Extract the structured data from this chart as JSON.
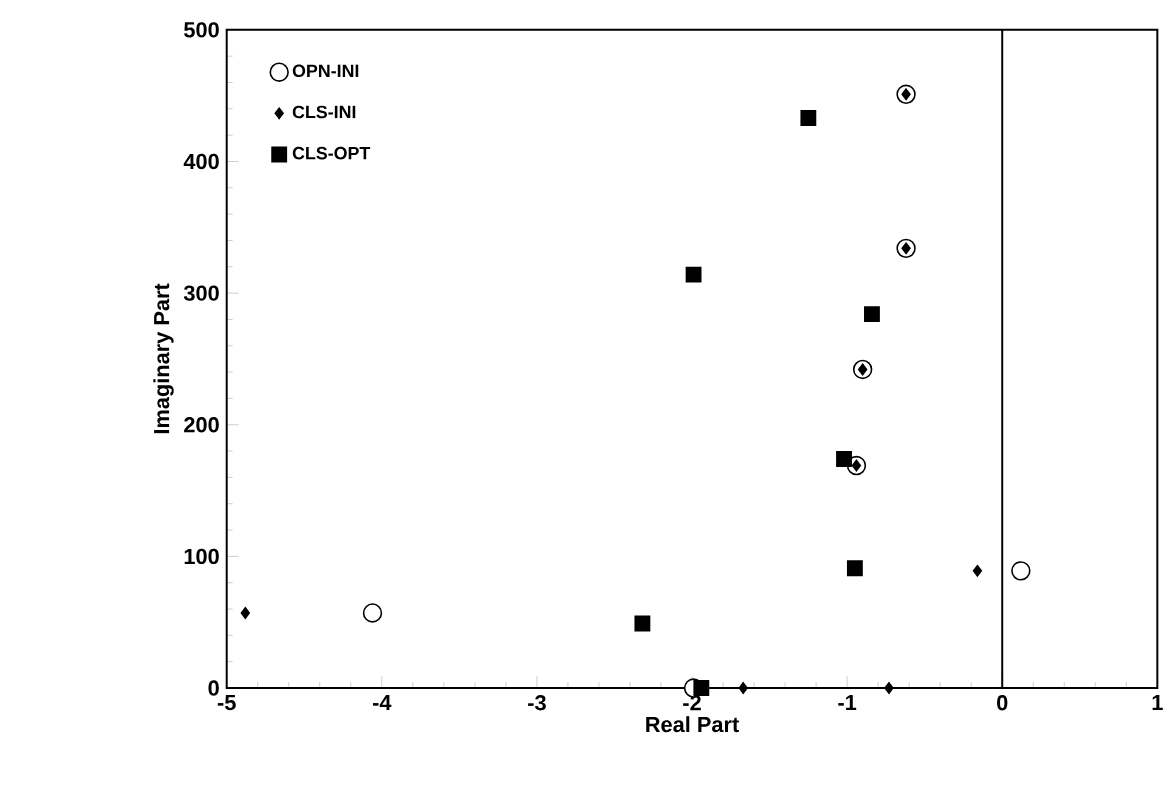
{
  "chart_data": {
    "type": "scatter",
    "xlabel": "Real Part",
    "ylabel": "Imaginary Part",
    "xlim": [
      -5,
      1
    ],
    "xticks": [
      -5,
      -4,
      -3,
      -2,
      -1,
      0,
      1
    ],
    "ylim": [
      0,
      500
    ],
    "yticks": [
      0,
      100,
      200,
      300,
      400,
      500
    ],
    "grid": false,
    "legend": "top left",
    "ref_lines": [
      {
        "axis": "x",
        "value": 0,
        "color": "#000000"
      }
    ],
    "series": [
      {
        "name": "OPN-INI",
        "color": "#000000",
        "marker": "circle",
        "x": [
          -0.62,
          -0.62,
          -0.9,
          -0.94,
          0.12,
          -4.06,
          -1.99
        ],
        "values": [
          451,
          334,
          242,
          169,
          89,
          57,
          0
        ]
      },
      {
        "name": "CLS-INI",
        "color": "#000000",
        "marker": "diamond",
        "x": [
          -0.62,
          -0.62,
          -0.9,
          -0.94,
          -4.88,
          -0.16,
          -1.67,
          -0.73
        ],
        "values": [
          451,
          334,
          242,
          169,
          57,
          89,
          0,
          0
        ]
      },
      {
        "name": "CLS-OPT",
        "color": "#000000",
        "marker": "square",
        "x": [
          -1.25,
          -1.99,
          -0.84,
          -1.02,
          -0.95,
          -2.32,
          -1.94
        ],
        "values": [
          433,
          314,
          284,
          174,
          91,
          49,
          0
        ]
      }
    ]
  }
}
